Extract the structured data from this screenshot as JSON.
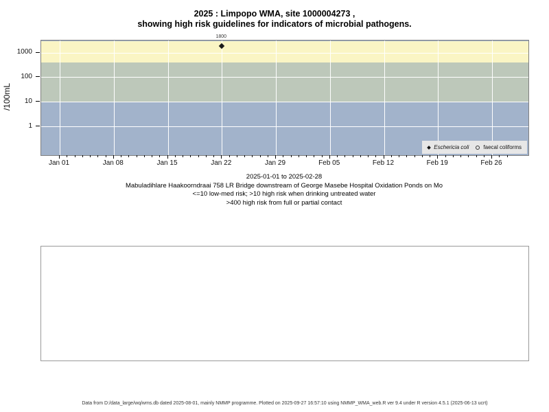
{
  "title": {
    "line1": "2025 : Limpopo WMA, site 1000004273 ,",
    "line2": "showing high risk guidelines for indicators of microbial pathogens."
  },
  "chart_data": {
    "type": "scatter",
    "title": "2025 : Limpopo WMA, site 1000004273 , showing high risk guidelines for indicators of microbial pathogens.",
    "ylabel": "/100mL",
    "y_scale": "log10",
    "ylim": [
      0.07,
      3000
    ],
    "y_tick_values": [
      1,
      10,
      100,
      1000
    ],
    "y_tick_labels": [
      "1",
      "10",
      "100",
      "1000"
    ],
    "x_ticks": [
      "Jan 01",
      "Jan 08",
      "Jan 15",
      "Jan 22",
      "Jan 29",
      "Feb 05",
      "Feb 12",
      "Feb 19",
      "Feb 26"
    ],
    "x_tick_days": [
      0,
      7,
      14,
      21,
      28,
      35,
      42,
      49,
      56
    ],
    "x_total_days": 59,
    "date_range": "2025-01-01 to 2025-02-28",
    "grid": true,
    "grid_color": "#ffffff",
    "legend_position": "bottom-right",
    "series": [
      {
        "name": "Eschericia coli",
        "marker": "filled-diamond",
        "color": "#1a1a1a",
        "points": [
          {
            "x": "Jan 22",
            "x_day": 21,
            "y": 1800,
            "label": "1800"
          }
        ]
      },
      {
        "name": "faecal coliforms",
        "marker": "open-circle",
        "color": "#333333",
        "points": []
      }
    ],
    "risk_bands": [
      {
        "label": ">400 high risk from full or partial contact",
        "y_from": 400,
        "y_to": 3000,
        "color": "#FAF5C4"
      },
      {
        "label": ">10 high risk when drinking untreated water",
        "y_from": 10,
        "y_to": 400,
        "color": "#BDC8BA"
      },
      {
        "label": "<=10 low-med risk",
        "y_from": 0.07,
        "y_to": 10,
        "color": "#A2B3CB"
      }
    ]
  },
  "caption": {
    "line1": "2025-01-01 to 2025-02-28",
    "line2": "Mabuladihlare Haakoorndraai 758 LR Bridge downstream of George Masebe Hospital Oxidation Ponds on Mo",
    "line3": "<=10 low-med risk; >10 high risk when drinking untreated water",
    "line4": ">400 high risk from full or partial contact"
  },
  "footer": {
    "text": "Data from D:/data_large/wq/wms.db dated 2025-08-01, mainly NMMP programme. Plotted on 2025-09-27 16:57:10 using NMMP_WMA_web.R ver 9.4 under R version 4.5.1 (2025-06-13 ucrt)"
  }
}
